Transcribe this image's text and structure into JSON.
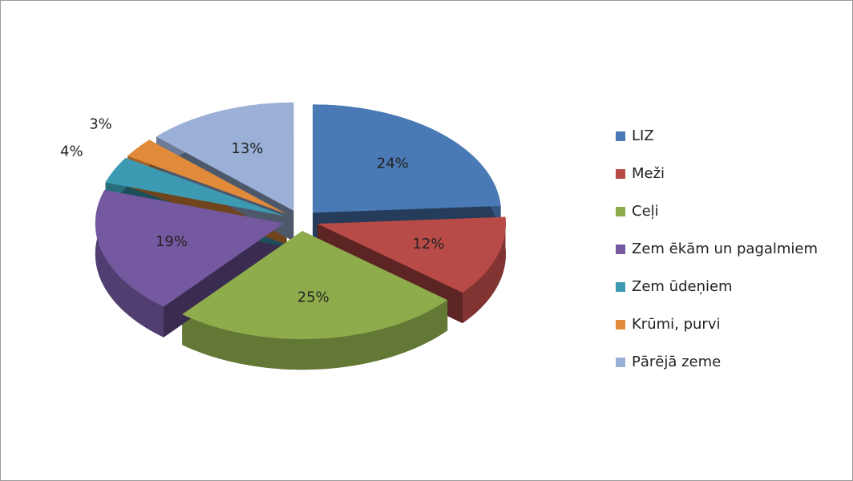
{
  "chart_data": {
    "type": "pie",
    "categories": [
      "LIZ",
      "Meži",
      "Ceļi",
      "Zem ēkām un pagalmiem",
      "Zem ūdeņiem",
      "Krūmi, purvi",
      "Pārējā zeme"
    ],
    "values": [
      24,
      12,
      25,
      19,
      4,
      3,
      13
    ],
    "value_labels": [
      "24%",
      "12%",
      "25%",
      "19%",
      "4%",
      "3%",
      "13%"
    ],
    "colors": [
      "#4a7ab5",
      "#b84a47",
      "#8fac4d",
      "#7458a0",
      "#3c9bb3",
      "#e08a3a",
      "#9bb0d6"
    ],
    "legend": "right"
  }
}
